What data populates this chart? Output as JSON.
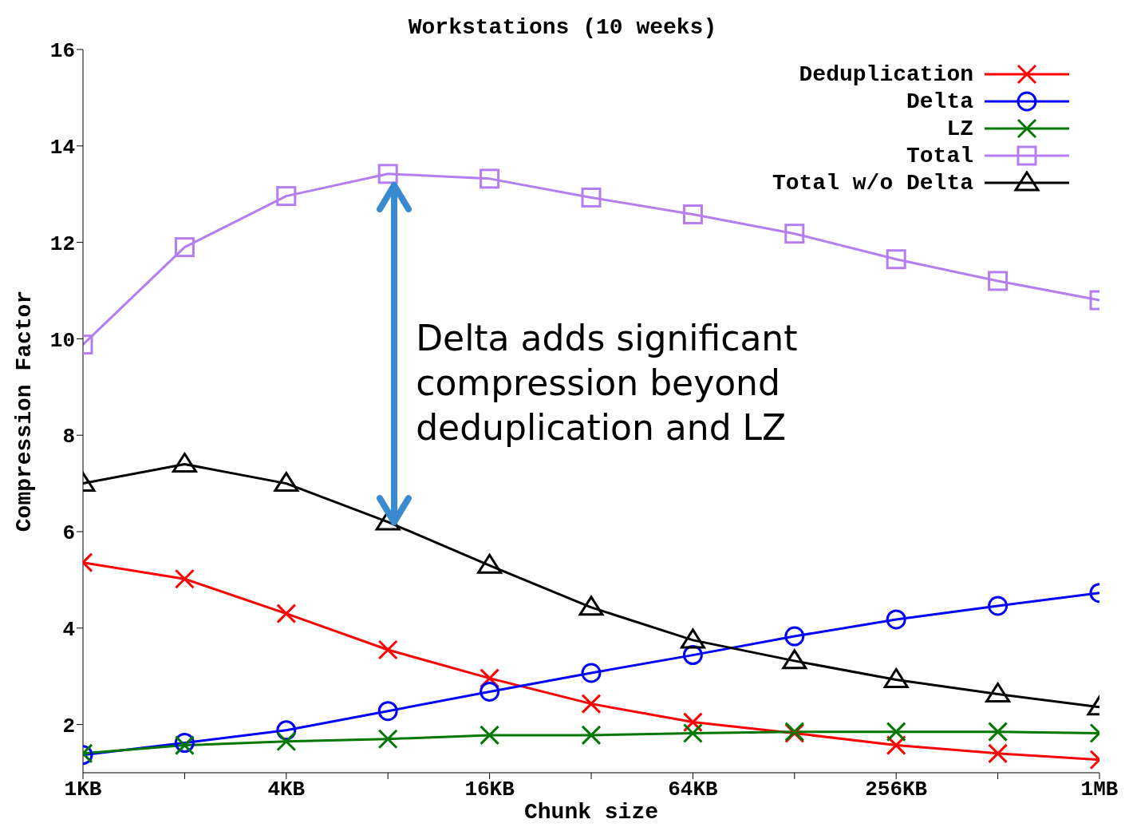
{
  "chart_data": {
    "type": "line",
    "title": "Workstations (10 weeks)",
    "xlabel": "Chunk size",
    "ylabel": "Compression Factor",
    "categories": [
      "1KB",
      null,
      "4KB",
      null,
      "16KB",
      null,
      "64KB",
      null,
      "256KB",
      null,
      "1MB"
    ],
    "series": [
      {
        "name": "Deduplication",
        "color": "#ff0000",
        "marker": "cross",
        "values": [
          5.36,
          5.02,
          4.3,
          3.55,
          2.96,
          2.43,
          2.05,
          1.82,
          1.57,
          1.4,
          1.27
        ]
      },
      {
        "name": "Delta",
        "color": "#0000ff",
        "marker": "circle",
        "values": [
          1.37,
          1.62,
          1.88,
          2.28,
          2.68,
          3.07,
          3.44,
          3.83,
          4.18,
          4.46,
          4.73
        ]
      },
      {
        "name": "LZ",
        "color": "#007700",
        "marker": "cross",
        "values": [
          1.4,
          1.57,
          1.65,
          1.7,
          1.78,
          1.78,
          1.82,
          1.85,
          1.85,
          1.85,
          1.82
        ]
      },
      {
        "name": "Total",
        "color": "#b47ef0",
        "marker": "square",
        "values": [
          9.88,
          11.9,
          12.96,
          13.42,
          13.32,
          12.93,
          12.58,
          12.18,
          11.65,
          11.2,
          10.8
        ]
      },
      {
        "name": "Total w/o Delta",
        "color": "#000000",
        "marker": "triangle",
        "values": [
          7.0,
          7.4,
          7.0,
          6.2,
          5.3,
          4.43,
          3.75,
          3.32,
          2.93,
          2.63,
          2.36
        ]
      }
    ],
    "ylim": [
      1,
      16
    ],
    "yticks": [
      2,
      4,
      6,
      8,
      10,
      12,
      14,
      16
    ],
    "grid": false,
    "legend": "top right",
    "annotations": [
      "Delta adds significant compression beyond deduplication and LZ"
    ]
  }
}
